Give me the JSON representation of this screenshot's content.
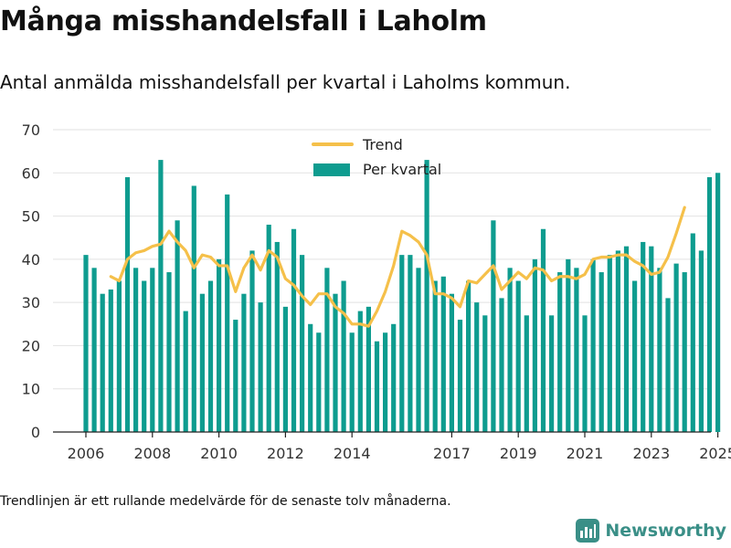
{
  "title": "Många misshandelsfall i Laholm",
  "subtitle": "Antal anmälda misshandelsfall per kvartal i Laholms kommun.",
  "footnote": "Trendlinjen är ett rullande medelvärde för de senaste tolv månaderna.",
  "brand": "Newsworthy",
  "colors": {
    "bar": "#0e9c8f",
    "trend": "#f5c04a",
    "brand": "#3a8f87"
  },
  "chart_data": {
    "type": "bar",
    "title": "",
    "xlabel": "",
    "ylabel": "",
    "ylim": [
      0,
      70
    ],
    "y_ticks": [
      0,
      10,
      20,
      30,
      40,
      50,
      60,
      70
    ],
    "x_ticks": [
      "2006",
      "2008",
      "2010",
      "2012",
      "2014",
      "2017",
      "2019",
      "2021",
      "2023",
      "2025"
    ],
    "x_tick_quarter_index": [
      0,
      8,
      16,
      24,
      32,
      44,
      52,
      60,
      68,
      76
    ],
    "grid": true,
    "legend": {
      "position": "top",
      "entries": [
        "Trend",
        "Per kvartal"
      ]
    },
    "series": [
      {
        "name": "Per kvartal",
        "type": "bar",
        "values": [
          41,
          38,
          32,
          33,
          35,
          59,
          38,
          35,
          38,
          63,
          37,
          49,
          28,
          57,
          32,
          35,
          40,
          55,
          26,
          32,
          42,
          30,
          48,
          44,
          29,
          47,
          41,
          25,
          23,
          38,
          32,
          35,
          23,
          28,
          29,
          21,
          23,
          25,
          41,
          41,
          38,
          63,
          35,
          36,
          32,
          26,
          35,
          30,
          27,
          49,
          31,
          38,
          35,
          27,
          40,
          47,
          27,
          37,
          40,
          38,
          27,
          40,
          37,
          41,
          42,
          43,
          35,
          44,
          43,
          38,
          31,
          39,
          37,
          46,
          42,
          59,
          60
        ]
      },
      {
        "name": "Trend",
        "type": "line",
        "start_index": 3,
        "values": [
          36,
          35,
          40,
          41.5,
          42,
          43,
          43.5,
          46.5,
          44,
          42,
          38,
          41,
          40.5,
          38.5,
          38.5,
          32.5,
          38,
          41,
          37.5,
          42,
          40.5,
          35.5,
          34,
          31.5,
          29.5,
          32,
          32,
          29,
          27.5,
          25,
          25,
          24.5,
          28,
          32.5,
          38.5,
          46.5,
          45.5,
          44,
          41,
          32,
          32,
          31,
          29,
          35,
          34.5,
          36.5,
          38.5,
          33,
          35,
          37,
          35.5,
          38,
          37.5,
          35,
          36,
          36,
          35.5,
          36.5,
          40,
          40.5,
          40.5,
          41,
          41,
          39.5,
          38.5,
          36.5,
          37,
          40.5,
          46,
          52
        ]
      }
    ]
  }
}
